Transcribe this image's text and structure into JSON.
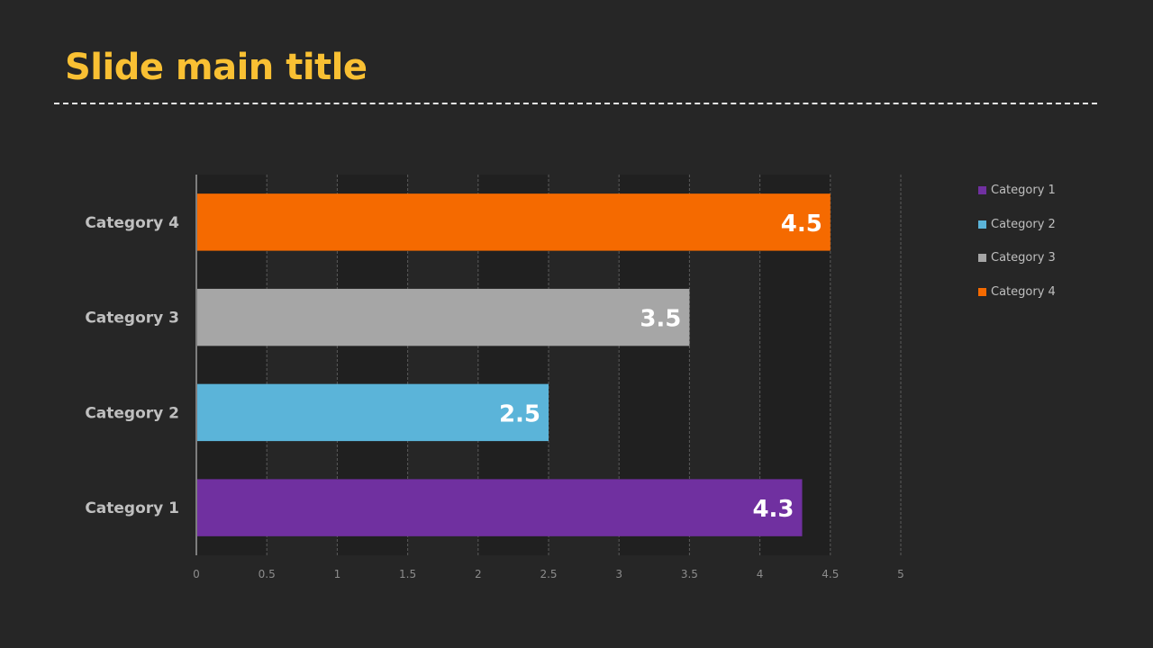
{
  "slide": {
    "title": "Slide main title"
  },
  "chart_data": {
    "type": "bar",
    "orientation": "horizontal",
    "categories": [
      "Category 1",
      "Category 2",
      "Category 3",
      "Category 4"
    ],
    "values": [
      4.3,
      2.5,
      3.5,
      4.5
    ],
    "data_labels": [
      "4.3",
      "2.5",
      "3.5",
      "4.5"
    ],
    "colors": [
      "#7030A0",
      "#5BB4D9",
      "#A6A6A6",
      "#F56A00"
    ],
    "xlim": [
      0,
      5
    ],
    "x_ticks": [
      "0",
      "0.5",
      "1",
      "1.5",
      "2",
      "2.5",
      "3",
      "3.5",
      "4",
      "4.5",
      "5"
    ],
    "grid": "vertical dashed",
    "legend": {
      "position": "right",
      "entries": [
        "Category 1",
        "Category 2",
        "Category 3",
        "Category 4"
      ]
    }
  }
}
